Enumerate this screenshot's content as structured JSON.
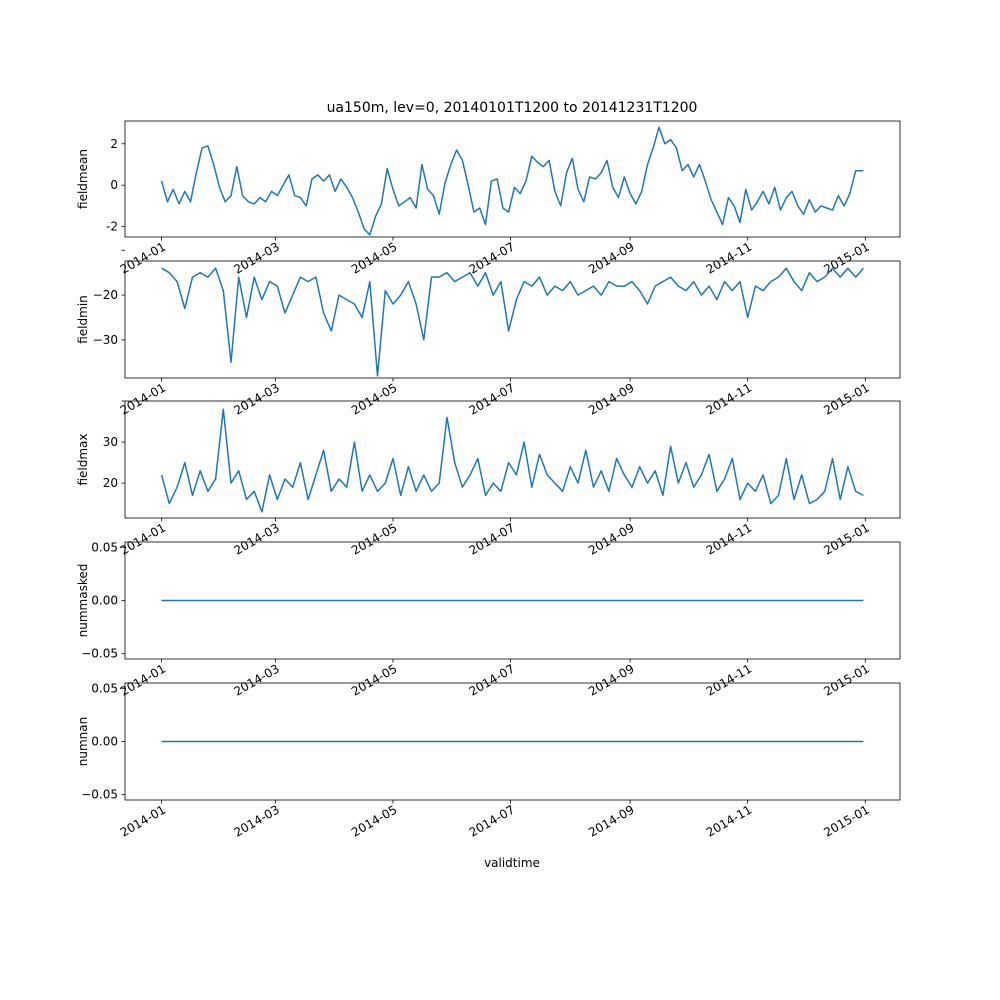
{
  "figure": {
    "title": "ua150m, lev=0, 20140101T1200 to 20141231T1200",
    "xlabel": "validtime"
  },
  "style": {
    "line_color": "#1f77b4",
    "axis_color": "#000000",
    "background": "#ffffff"
  },
  "chart_data": [
    {
      "type": "line",
      "ylabel": "fieldmean",
      "xlim": [
        "2013-12-13",
        "2015-01-19"
      ],
      "ylim": [
        -2.5,
        3.1
      ],
      "yticks": [
        -2,
        0,
        2
      ],
      "xticks": [
        "2014-01",
        "2014-03",
        "2014-05",
        "2014-07",
        "2014-09",
        "2014-11",
        "2015-01"
      ],
      "xtick_labels_visible": true,
      "x": [
        "2014-01-01",
        "2014-01-04",
        "2014-01-07",
        "2014-01-10",
        "2014-01-13",
        "2014-01-16",
        "2014-01-19",
        "2014-01-22",
        "2014-01-25",
        "2014-01-28",
        "2014-01-31",
        "2014-02-03",
        "2014-02-06",
        "2014-02-09",
        "2014-02-12",
        "2014-02-15",
        "2014-02-18",
        "2014-02-21",
        "2014-02-24",
        "2014-02-27",
        "2014-03-02",
        "2014-03-05",
        "2014-03-08",
        "2014-03-11",
        "2014-03-14",
        "2014-03-17",
        "2014-03-20",
        "2014-03-23",
        "2014-03-26",
        "2014-03-29",
        "2014-04-01",
        "2014-04-04",
        "2014-04-07",
        "2014-04-10",
        "2014-04-13",
        "2014-04-16",
        "2014-04-19",
        "2014-04-22",
        "2014-04-25",
        "2014-04-28",
        "2014-05-01",
        "2014-05-04",
        "2014-05-07",
        "2014-05-10",
        "2014-05-13",
        "2014-05-16",
        "2014-05-19",
        "2014-05-22",
        "2014-05-25",
        "2014-05-28",
        "2014-05-31",
        "2014-06-03",
        "2014-06-06",
        "2014-06-09",
        "2014-06-12",
        "2014-06-15",
        "2014-06-18",
        "2014-06-21",
        "2014-06-24",
        "2014-06-27",
        "2014-06-30",
        "2014-07-03",
        "2014-07-06",
        "2014-07-09",
        "2014-07-12",
        "2014-07-15",
        "2014-07-18",
        "2014-07-21",
        "2014-07-24",
        "2014-07-27",
        "2014-07-30",
        "2014-08-02",
        "2014-08-05",
        "2014-08-08",
        "2014-08-11",
        "2014-08-14",
        "2014-08-17",
        "2014-08-20",
        "2014-08-23",
        "2014-08-26",
        "2014-08-29",
        "2014-09-01",
        "2014-09-04",
        "2014-09-07",
        "2014-09-10",
        "2014-09-13",
        "2014-09-16",
        "2014-09-19",
        "2014-09-22",
        "2014-09-25",
        "2014-09-28",
        "2014-10-01",
        "2014-10-04",
        "2014-10-07",
        "2014-10-10",
        "2014-10-13",
        "2014-10-16",
        "2014-10-19",
        "2014-10-22",
        "2014-10-25",
        "2014-10-28",
        "2014-10-31",
        "2014-11-03",
        "2014-11-06",
        "2014-11-09",
        "2014-11-12",
        "2014-11-15",
        "2014-11-18",
        "2014-11-21",
        "2014-11-24",
        "2014-11-27",
        "2014-11-30",
        "2014-12-03",
        "2014-12-06",
        "2014-12-09",
        "2014-12-12",
        "2014-12-15",
        "2014-12-18",
        "2014-12-21",
        "2014-12-24",
        "2014-12-27",
        "2014-12-31"
      ],
      "values": [
        0.2,
        -0.8,
        -0.2,
        -0.9,
        -0.3,
        -0.8,
        0.6,
        1.8,
        1.9,
        1.0,
        -0.1,
        -0.8,
        -0.5,
        0.9,
        -0.5,
        -0.8,
        -0.9,
        -0.6,
        -0.8,
        -0.3,
        -0.5,
        0.0,
        0.5,
        -0.5,
        -0.6,
        -1.0,
        0.3,
        0.5,
        0.2,
        0.5,
        -0.3,
        0.3,
        -0.1,
        -0.6,
        -1.3,
        -2.1,
        -2.4,
        -1.5,
        -0.9,
        0.8,
        -0.2,
        -1.0,
        -0.8,
        -0.6,
        -1.1,
        1.0,
        -0.2,
        -0.5,
        -1.4,
        0.1,
        1.0,
        1.7,
        1.2,
        0.0,
        -1.3,
        -1.1,
        -1.9,
        0.2,
        0.3,
        -1.1,
        -1.3,
        -0.1,
        -0.4,
        0.2,
        1.4,
        1.1,
        0.9,
        1.2,
        -0.3,
        -1.0,
        0.6,
        1.3,
        -0.2,
        -0.8,
        0.4,
        0.3,
        0.6,
        1.2,
        -0.1,
        -0.6,
        0.4,
        -0.4,
        -0.9,
        -0.3,
        1.0,
        1.8,
        2.8,
        2.0,
        2.2,
        1.8,
        0.7,
        1.0,
        0.4,
        1.0,
        0.2,
        -0.7,
        -1.3,
        -1.9,
        -0.6,
        -1.0,
        -1.8,
        -0.2,
        -1.2,
        -0.8,
        -0.3,
        -0.9,
        -0.1,
        -1.2,
        -0.6,
        -0.3,
        -1.0,
        -1.4,
        -0.7,
        -1.3,
        -1.0,
        -1.1,
        -1.2,
        -0.5,
        -1.0,
        -0.4,
        0.7,
        0.7
      ]
    },
    {
      "type": "line",
      "ylabel": "fieldmin",
      "xlim": [
        "2013-12-13",
        "2015-01-19"
      ],
      "ylim": [
        -38.5,
        -12.4
      ],
      "yticks": [
        -30,
        -20,
        -10
      ],
      "ytick_labels": [
        "−30",
        "−20",
        ""
      ],
      "xticks": [
        "2014-01",
        "2014-03",
        "2014-05",
        "2014-07",
        "2014-09",
        "2014-11",
        "2015-01"
      ],
      "xtick_labels_visible": true,
      "x": [
        "2014-01-01",
        "2014-01-05",
        "2014-01-09",
        "2014-01-13",
        "2014-01-17",
        "2014-01-21",
        "2014-01-25",
        "2014-01-29",
        "2014-02-02",
        "2014-02-06",
        "2014-02-10",
        "2014-02-14",
        "2014-02-18",
        "2014-02-22",
        "2014-02-26",
        "2014-03-02",
        "2014-03-06",
        "2014-03-10",
        "2014-03-14",
        "2014-03-18",
        "2014-03-22",
        "2014-03-26",
        "2014-03-30",
        "2014-04-03",
        "2014-04-07",
        "2014-04-11",
        "2014-04-15",
        "2014-04-19",
        "2014-04-23",
        "2014-04-27",
        "2014-05-01",
        "2014-05-05",
        "2014-05-09",
        "2014-05-13",
        "2014-05-17",
        "2014-05-21",
        "2014-05-25",
        "2014-05-29",
        "2014-06-02",
        "2014-06-06",
        "2014-06-10",
        "2014-06-14",
        "2014-06-18",
        "2014-06-22",
        "2014-06-26",
        "2014-06-30",
        "2014-07-04",
        "2014-07-08",
        "2014-07-12",
        "2014-07-16",
        "2014-07-20",
        "2014-07-24",
        "2014-07-28",
        "2014-08-01",
        "2014-08-05",
        "2014-08-09",
        "2014-08-13",
        "2014-08-17",
        "2014-08-21",
        "2014-08-25",
        "2014-08-29",
        "2014-09-02",
        "2014-09-06",
        "2014-09-10",
        "2014-09-14",
        "2014-09-18",
        "2014-09-22",
        "2014-09-26",
        "2014-09-30",
        "2014-10-04",
        "2014-10-08",
        "2014-10-12",
        "2014-10-16",
        "2014-10-20",
        "2014-10-24",
        "2014-10-28",
        "2014-11-01",
        "2014-11-05",
        "2014-11-09",
        "2014-11-13",
        "2014-11-17",
        "2014-11-21",
        "2014-11-25",
        "2014-11-29",
        "2014-12-03",
        "2014-12-07",
        "2014-12-11",
        "2014-12-15",
        "2014-12-19",
        "2014-12-23",
        "2014-12-27",
        "2014-12-31"
      ],
      "values": [
        -14,
        -15,
        -17,
        -23,
        -16,
        -15,
        -16,
        -14,
        -19,
        -35,
        -16,
        -25,
        -16,
        -21,
        -17,
        -18,
        -24,
        -20,
        -16,
        -17,
        -16,
        -24,
        -28,
        -20,
        -21,
        -22,
        -25,
        -17,
        -38,
        -19,
        -22,
        -20,
        -17,
        -22,
        -30,
        -16,
        -16,
        -15,
        -17,
        -16,
        -15,
        -18,
        -15,
        -20,
        -17,
        -28,
        -21,
        -17,
        -18,
        -16,
        -20,
        -18,
        -19,
        -17,
        -20,
        -19,
        -18,
        -20,
        -17,
        -18,
        -18,
        -17,
        -19,
        -22,
        -18,
        -17,
        -16,
        -18,
        -19,
        -17,
        -20,
        -18,
        -21,
        -17,
        -19,
        -17,
        -25,
        -18,
        -19,
        -17,
        -16,
        -14,
        -17,
        -19,
        -15,
        -17,
        -16,
        -14,
        -16,
        -14,
        -16,
        -14
      ]
    },
    {
      "type": "line",
      "ylabel": "fieldmax",
      "xlim": [
        "2013-12-13",
        "2015-01-19"
      ],
      "ylim": [
        11.5,
        40
      ],
      "yticks": [
        20,
        30,
        40
      ],
      "ytick_labels": [
        "20",
        "30",
        ""
      ],
      "xticks": [
        "2014-01",
        "2014-03",
        "2014-05",
        "2014-07",
        "2014-09",
        "2014-11",
        "2015-01"
      ],
      "xtick_labels_visible": true,
      "x": [
        "2014-01-01",
        "2014-01-05",
        "2014-01-09",
        "2014-01-13",
        "2014-01-17",
        "2014-01-21",
        "2014-01-25",
        "2014-01-29",
        "2014-02-02",
        "2014-02-06",
        "2014-02-10",
        "2014-02-14",
        "2014-02-18",
        "2014-02-22",
        "2014-02-26",
        "2014-03-02",
        "2014-03-06",
        "2014-03-10",
        "2014-03-14",
        "2014-03-18",
        "2014-03-22",
        "2014-03-26",
        "2014-03-30",
        "2014-04-03",
        "2014-04-07",
        "2014-04-11",
        "2014-04-15",
        "2014-04-19",
        "2014-04-23",
        "2014-04-27",
        "2014-05-01",
        "2014-05-05",
        "2014-05-09",
        "2014-05-13",
        "2014-05-17",
        "2014-05-21",
        "2014-05-25",
        "2014-05-29",
        "2014-06-02",
        "2014-06-06",
        "2014-06-10",
        "2014-06-14",
        "2014-06-18",
        "2014-06-22",
        "2014-06-26",
        "2014-06-30",
        "2014-07-04",
        "2014-07-08",
        "2014-07-12",
        "2014-07-16",
        "2014-07-20",
        "2014-07-24",
        "2014-07-28",
        "2014-08-01",
        "2014-08-05",
        "2014-08-09",
        "2014-08-13",
        "2014-08-17",
        "2014-08-21",
        "2014-08-25",
        "2014-08-29",
        "2014-09-02",
        "2014-09-06",
        "2014-09-10",
        "2014-09-14",
        "2014-09-18",
        "2014-09-22",
        "2014-09-26",
        "2014-09-30",
        "2014-10-04",
        "2014-10-08",
        "2014-10-12",
        "2014-10-16",
        "2014-10-20",
        "2014-10-24",
        "2014-10-28",
        "2014-11-01",
        "2014-11-05",
        "2014-11-09",
        "2014-11-13",
        "2014-11-17",
        "2014-11-21",
        "2014-11-25",
        "2014-11-29",
        "2014-12-03",
        "2014-12-07",
        "2014-12-11",
        "2014-12-15",
        "2014-12-19",
        "2014-12-23",
        "2014-12-27",
        "2014-12-31"
      ],
      "values": [
        22,
        15,
        19,
        25,
        17,
        23,
        18,
        21,
        38,
        20,
        23,
        16,
        18,
        13,
        22,
        16,
        21,
        19,
        25,
        16,
        22,
        28,
        18,
        21,
        19,
        30,
        18,
        22,
        18,
        20,
        26,
        17,
        24,
        18,
        22,
        18,
        20,
        36,
        25,
        19,
        22,
        26,
        17,
        20,
        18,
        25,
        22,
        30,
        19,
        27,
        22,
        20,
        18,
        24,
        20,
        28,
        19,
        23,
        18,
        26,
        22,
        19,
        24,
        20,
        23,
        17,
        29,
        20,
        25,
        19,
        22,
        27,
        18,
        21,
        26,
        16,
        20,
        18,
        22,
        15,
        17,
        26,
        16,
        22,
        15,
        16,
        18,
        26,
        16,
        24,
        18,
        17
      ]
    },
    {
      "type": "line",
      "ylabel": "nummasked",
      "xlim": [
        "2013-12-13",
        "2015-01-19"
      ],
      "ylim": [
        -0.055,
        0.055
      ],
      "yticks": [
        -0.05,
        0.0,
        0.05
      ],
      "ytick_labels": [
        "−0.05",
        "0.00",
        "0.05"
      ],
      "xticks": [
        "2014-01",
        "2014-03",
        "2014-05",
        "2014-07",
        "2014-09",
        "2014-11",
        "2015-01"
      ],
      "xtick_labels_visible": true,
      "x": [
        "2014-01-01",
        "2014-12-31"
      ],
      "values": [
        0,
        0
      ]
    },
    {
      "type": "line",
      "ylabel": "numnan",
      "xlim": [
        "2013-12-13",
        "2015-01-19"
      ],
      "ylim": [
        -0.055,
        0.055
      ],
      "yticks": [
        -0.05,
        0.0,
        0.05
      ],
      "ytick_labels": [
        "−0.05",
        "0.00",
        "0.05"
      ],
      "xticks": [
        "2014-01",
        "2014-03",
        "2014-05",
        "2014-07",
        "2014-09",
        "2014-11",
        "2015-01"
      ],
      "xtick_labels": [
        "2014-01",
        "2014-03",
        "2014-05",
        "2014-07",
        "2014-09",
        "2014-11",
        "2015-01"
      ],
      "xtick_labels_visible": true,
      "x": [
        "2014-01-01",
        "2014-12-31"
      ],
      "values": [
        0,
        0
      ]
    }
  ]
}
